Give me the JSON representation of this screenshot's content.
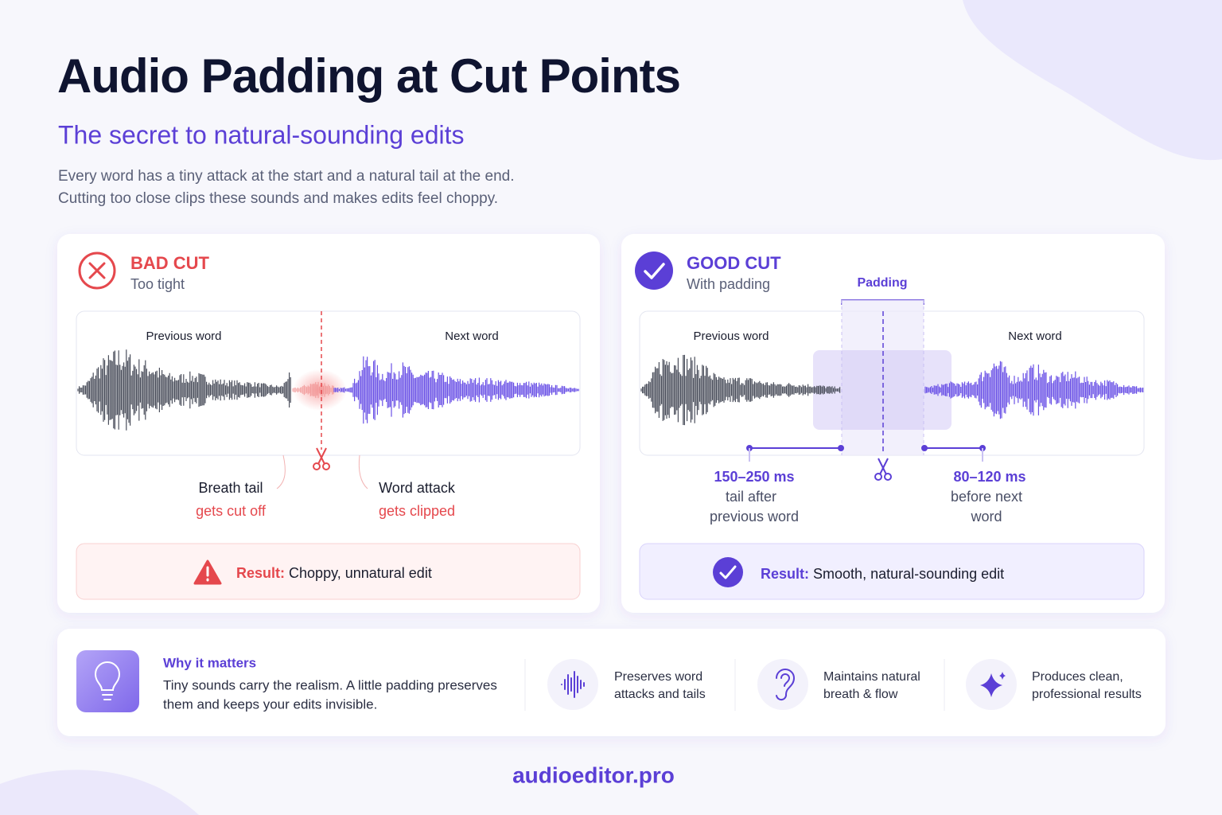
{
  "header": {
    "title": "Audio Padding at Cut Points",
    "subtitle": "The secret to natural-sounding edits",
    "description": [
      "Every word has a tiny attack at the start and a natural tail at the end.",
      "Cutting too close clips these sounds and makes edits feel choppy."
    ]
  },
  "bad_cut": {
    "title": "BAD CUT",
    "subtitle": "Too tight",
    "previous_label": "Previous word",
    "next_label": "Next word",
    "notes": [
      {
        "label": "Breath tail",
        "detail": "gets cut off"
      },
      {
        "label": "Word attack",
        "detail": "gets clipped"
      }
    ],
    "result": {
      "label": "Result:",
      "text": "Choppy, unnatural edit"
    }
  },
  "good_cut": {
    "title": "GOOD CUT",
    "subtitle": "With padding",
    "padding_label": "Padding",
    "previous_label": "Previous word",
    "next_label": "Next word",
    "notes": [
      {
        "value": "150–250 ms",
        "detail": [
          "tail after",
          "previous word"
        ]
      },
      {
        "value": "80–120 ms",
        "detail": [
          "before next",
          "word"
        ]
      }
    ],
    "result": {
      "label": "Result:",
      "text": "Smooth, natural-sounding edit"
    }
  },
  "why_panel": {
    "title": "Why it matters",
    "text": [
      "Tiny sounds carry the realism. A little padding preserves",
      "them and keeps your edits invisible."
    ],
    "benefits": [
      [
        "Preserves word",
        "attacks and tails"
      ],
      [
        "Maintains natural",
        "breath & flow"
      ],
      [
        "Produces clean,",
        "professional results"
      ]
    ]
  },
  "footer": "audioeditor.pro"
}
